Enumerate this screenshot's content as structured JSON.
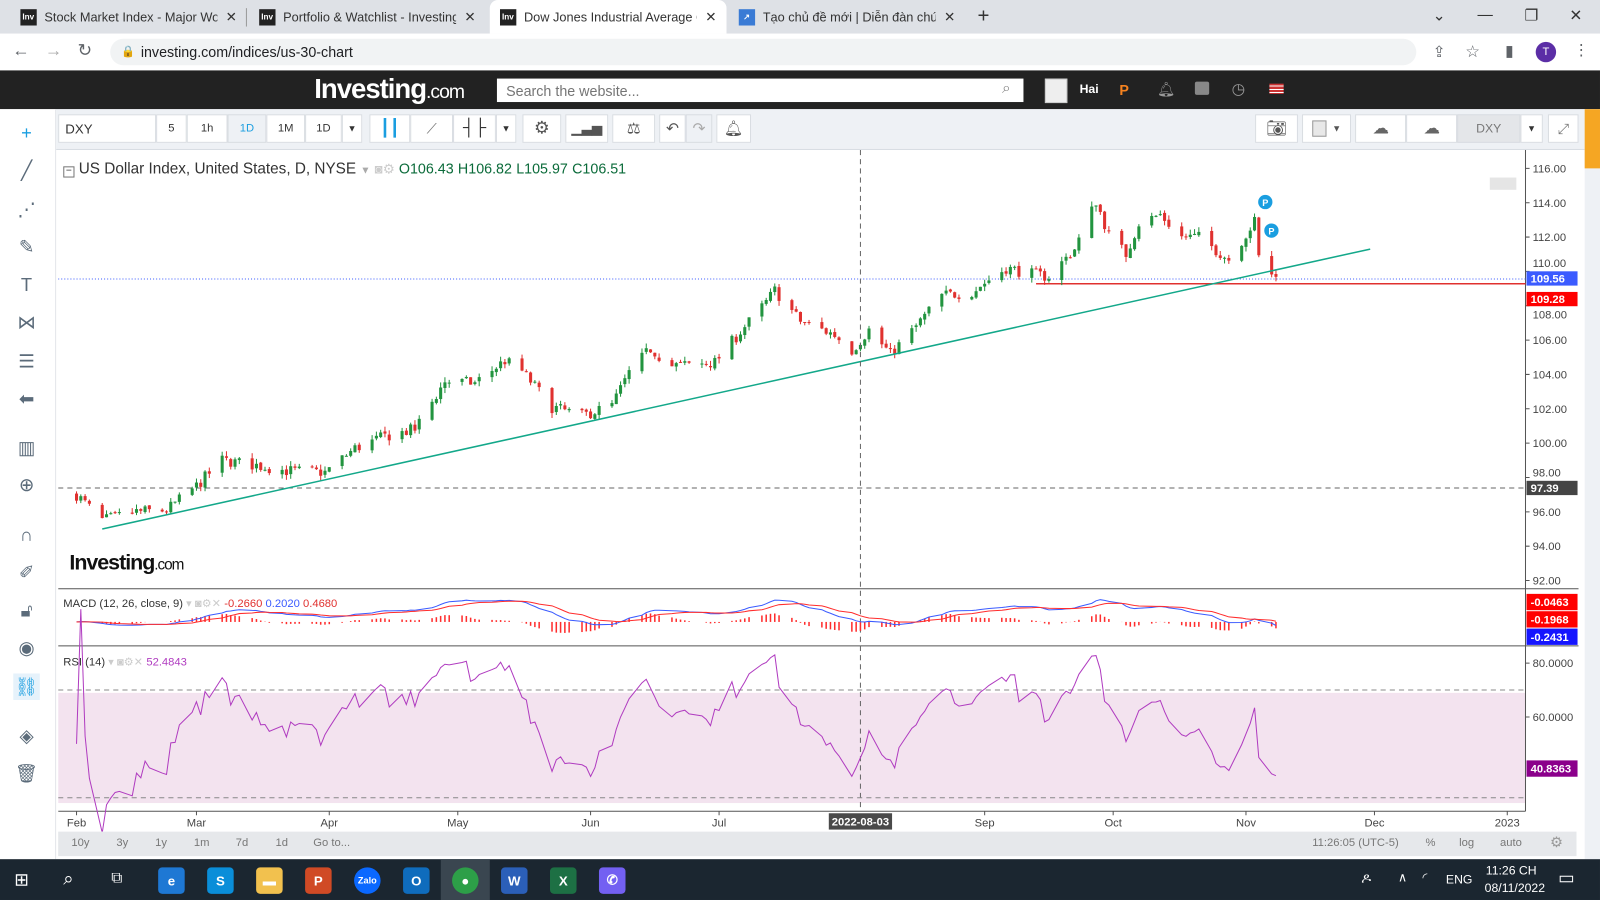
{
  "browser": {
    "tabs": [
      {
        "favicon": "Inv",
        "title": "Stock Market Index - Major World Indices",
        "active": false
      },
      {
        "favicon": "Inv",
        "title": "Portfolio & Watchlist - Investing.com",
        "active": false
      },
      {
        "favicon": "Inv",
        "title": "Dow Jones Industrial Average Chart",
        "active": true
      },
      {
        "favicon": "chart-icon",
        "title": "Tạo chủ đề mới | Diễn đàn chứng khoán",
        "active": false
      }
    ],
    "new_tab": "+",
    "url": "investing.com/indices/us-30-chart",
    "profile_initial": "T"
  },
  "site": {
    "logo": "Investing",
    "logo_suffix": ".com",
    "search_placeholder": "Search the website...",
    "user": "Hai"
  },
  "toolbar": {
    "symbol": "DXY",
    "intervals": [
      "5",
      "1h",
      "1D",
      "1M",
      "1D"
    ],
    "active_interval": "1D",
    "right_symbol": "DXY"
  },
  "chart_header": {
    "title": "US Dollar Index, United States, D, NYSE",
    "open": "O106.43",
    "high": "H106.82",
    "low": "L105.97",
    "close": "C106.51"
  },
  "watermark": {
    "text": "Investing",
    "suffix": ".com"
  },
  "macd": {
    "label": "MACD (12, 26, close, 9)",
    "v1": "-0.2660",
    "v2": "0.2020",
    "v3": "0.4680",
    "badges": [
      "-0.0463",
      "-0.1968",
      "-0.2431"
    ]
  },
  "rsi": {
    "label": "RSI (14)",
    "value": "52.4843",
    "axis": [
      "80.0000",
      "60.0000"
    ],
    "badge": "40.8363"
  },
  "price_axis": [
    "116.00",
    "114.00",
    "112.00",
    "110.00",
    "108.00",
    "106.00",
    "104.00",
    "102.00",
    "100.00",
    "98.00",
    "96.00",
    "94.00",
    "92.00"
  ],
  "price_badges": {
    "blue": "109.56",
    "red": "109.28",
    "crosshair": "97.39"
  },
  "x_axis": [
    "Feb",
    "Mar",
    "Apr",
    "May",
    "Jun",
    "Jul",
    "Sep",
    "Oct",
    "Nov",
    "Dec",
    "2023"
  ],
  "crosshair_date": "2022-08-03",
  "markers": [
    "P",
    "P"
  ],
  "bottom": {
    "ranges": [
      "10y",
      "3y",
      "1y",
      "1m",
      "7d",
      "1d",
      "Go to..."
    ],
    "time": "11:26:05 (UTC-5)",
    "opts": [
      "%",
      "log",
      "auto"
    ]
  },
  "taskbar": {
    "lang": "ENG",
    "time": "11:26 CH",
    "date": "08/11/2022",
    "apps": [
      {
        "name": "edge",
        "label": "e",
        "color": "#1e78d4"
      },
      {
        "name": "skype",
        "label": "S",
        "color": "#0a8ed9"
      },
      {
        "name": "explorer",
        "label": "▬",
        "color": "#f2c14e"
      },
      {
        "name": "powerpoint",
        "label": "P",
        "color": "#d04a25"
      },
      {
        "name": "zalo",
        "label": "Zalo",
        "color": "#0a68ff"
      },
      {
        "name": "outlook",
        "label": "O",
        "color": "#0f6cbd"
      },
      {
        "name": "chrome",
        "label": "●",
        "color": "#2d9f48"
      },
      {
        "name": "word",
        "label": "W",
        "color": "#2b5fb8"
      },
      {
        "name": "excel",
        "label": "X",
        "color": "#1d7044"
      },
      {
        "name": "viber",
        "label": "✆",
        "color": "#7360f2"
      }
    ]
  },
  "colors": {
    "up": "#22943f",
    "down": "#e0312f",
    "trend": "#13a88a",
    "macd": "#3b5bff",
    "signal": "#ff2d2d",
    "rsi": "#b03cc0",
    "rsi_band": "#f3e3ef",
    "accent": "#1a9ee0"
  },
  "chart_data": {
    "type": "candlestick",
    "title": "US Dollar Index, United States, D, NYSE",
    "ylim": [
      91.5,
      116.8
    ],
    "x_range": [
      "2022-01-30",
      "2023-01-05"
    ],
    "anchors": [
      [
        "2022-02-01",
        97.0
      ],
      [
        "2022-02-07",
        95.5
      ],
      [
        "2022-02-15",
        96.0
      ],
      [
        "2022-02-22",
        96.1
      ],
      [
        "2022-03-01",
        97.5
      ],
      [
        "2022-03-07",
        99.0
      ],
      [
        "2022-03-15",
        98.7
      ],
      [
        "2022-03-22",
        98.4
      ],
      [
        "2022-03-31",
        98.3
      ],
      [
        "2022-04-07",
        99.7
      ],
      [
        "2022-04-14",
        100.4
      ],
      [
        "2022-04-21",
        100.8
      ],
      [
        "2022-04-28",
        103.6
      ],
      [
        "2022-05-05",
        103.5
      ],
      [
        "2022-05-12",
        104.8
      ],
      [
        "2022-05-16",
        104.2
      ],
      [
        "2022-05-23",
        102.1
      ],
      [
        "2022-05-30",
        101.6
      ],
      [
        "2022-06-06",
        102.2
      ],
      [
        "2022-06-10",
        104.1
      ],
      [
        "2022-06-15",
        105.5
      ],
      [
        "2022-06-20",
        104.5
      ],
      [
        "2022-06-30",
        104.7
      ],
      [
        "2022-07-06",
        106.5
      ],
      [
        "2022-07-12",
        108.2
      ],
      [
        "2022-07-14",
        108.9
      ],
      [
        "2022-07-20",
        107.1
      ],
      [
        "2022-07-28",
        106.3
      ],
      [
        "2022-08-01",
        105.4
      ],
      [
        "2022-08-05",
        106.6
      ],
      [
        "2022-08-10",
        105.2
      ],
      [
        "2022-08-15",
        106.5
      ],
      [
        "2022-08-22",
        108.6
      ],
      [
        "2022-08-29",
        108.8
      ],
      [
        "2022-09-06",
        110.2
      ],
      [
        "2022-09-13",
        109.8
      ],
      [
        "2022-09-16",
        109.7
      ],
      [
        "2022-09-22",
        111.3
      ],
      [
        "2022-09-27",
        114.1
      ],
      [
        "2022-09-30",
        112.1
      ],
      [
        "2022-10-04",
        111.0
      ],
      [
        "2022-10-07",
        112.8
      ],
      [
        "2022-10-12",
        113.3
      ],
      [
        "2022-10-17",
        112.0
      ],
      [
        "2022-10-21",
        112.0
      ],
      [
        "2022-10-28",
        110.7
      ],
      [
        "2022-11-03",
        112.9
      ],
      [
        "2022-11-04",
        110.8
      ],
      [
        "2022-11-08",
        109.6
      ]
    ],
    "trendline": [
      [
        "2022-02-07",
        95.0
      ],
      [
        "2022-11-30",
        111.3
      ]
    ],
    "hlines": [
      {
        "value": 109.56,
        "style": "dotted",
        "color": "#3b5bff"
      },
      {
        "value": 109.28,
        "from": "2022-09-13",
        "color": "#e0312f"
      },
      {
        "value": 97.39,
        "style": "dashed",
        "color": "#666"
      }
    ],
    "crosshair": {
      "date": "2022-08-03",
      "value": 97.39
    },
    "rsi_levels": [
      70,
      30
    ],
    "rsi_ylim": [
      25,
      86
    ]
  }
}
